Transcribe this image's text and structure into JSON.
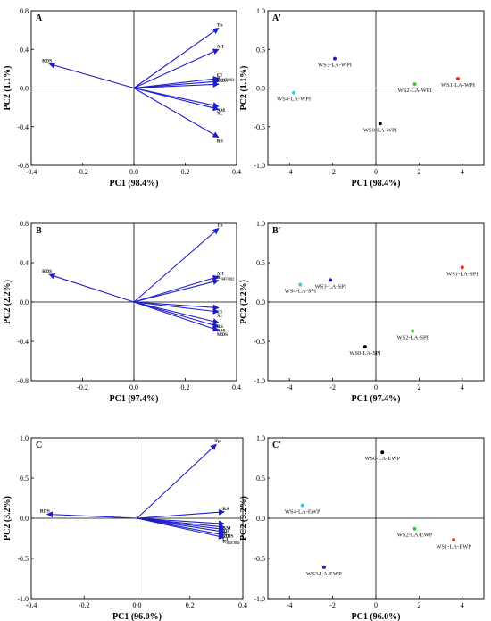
{
  "colors": {
    "loading_arrow": "#1c1ccc",
    "black": "#000000",
    "blue": "#1f1fb4",
    "cyan": "#33ccee",
    "green": "#33cc33",
    "red": "#ee2222"
  },
  "chart_data": [
    {
      "panel": "A",
      "type": "biplot-loadings",
      "xlabel": "PC1 (98.4%)",
      "ylabel": "PC2 (1.1%)",
      "xlim": [
        -0.4,
        0.4
      ],
      "ylim": [
        -0.8,
        0.8
      ],
      "xticks": [
        -0.4,
        -0.2,
        0.0,
        0.2,
        0.4
      ],
      "yticks": [
        -0.8,
        -0.4,
        0.0,
        0.4,
        0.8
      ],
      "xtick_labels": [
        "-0.4",
        "-0.2",
        "0.0",
        "0.2",
        "0.4"
      ],
      "ytick_labels": [
        "-0.8",
        "-0.4",
        "0.0",
        "0.4",
        "0.8"
      ],
      "loadings": [
        {
          "label": "Tp",
          "x": 0.33,
          "y": 0.62
        },
        {
          "label": "ΔH",
          "x": 0.33,
          "y": 0.4
        },
        {
          "label": "CI",
          "x": 0.33,
          "y": 0.1
        },
        {
          "label": "R1047/1022",
          "x": 0.33,
          "y": 0.07
        },
        {
          "label": "MDS",
          "x": 0.33,
          "y": 0.04
        },
        {
          "label": "AM",
          "x": 0.33,
          "y": -0.19
        },
        {
          "label": "Xc",
          "x": 0.33,
          "y": -0.22
        },
        {
          "label": "RS",
          "x": 0.33,
          "y": -0.51
        },
        {
          "label": "RDS",
          "x": -0.33,
          "y": 0.25
        }
      ]
    },
    {
      "panel": "A'",
      "type": "scatter",
      "xlabel": "PC1 (98.4%)",
      "ylabel": "PC2 (1.1%)",
      "xlim": [
        -5,
        5
      ],
      "ylim": [
        -1.0,
        1.0
      ],
      "xticks": [
        -4,
        -2,
        0,
        2,
        4
      ],
      "yticks": [
        -1.0,
        -0.5,
        0.0,
        0.5,
        1.0
      ],
      "xtick_labels": [
        "-4",
        "-2",
        "0",
        "2",
        "4"
      ],
      "ytick_labels": [
        "-1.0",
        "-0.5",
        "0.0",
        "0.5",
        "1.0"
      ],
      "points": [
        {
          "label": "WS3-LA-WPI",
          "x": -1.9,
          "y": 0.38,
          "color": "#1f1fb4"
        },
        {
          "label": "WS4-LA-WPI",
          "x": -3.8,
          "y": -0.06,
          "color": "#33ccee"
        },
        {
          "label": "WS2-LA-WPI",
          "x": 1.8,
          "y": 0.05,
          "color": "#33cc33"
        },
        {
          "label": "WS1-LA-WPI",
          "x": 3.8,
          "y": 0.12,
          "color": "#ee2222"
        },
        {
          "label": "WS0-LA-WPI",
          "x": 0.2,
          "y": -0.46,
          "color": "#000000"
        }
      ]
    },
    {
      "panel": "B",
      "type": "biplot-loadings",
      "xlabel": "PC1 (97.4%)",
      "ylabel": "PC2 (2.2%)",
      "xlim": [
        -0.4,
        0.4
      ],
      "ylim": [
        -0.8,
        0.8
      ],
      "xticks": [
        -0.2,
        0.0,
        0.2,
        0.4
      ],
      "yticks": [
        -0.8,
        -0.4,
        0.0,
        0.4,
        0.8
      ],
      "xtick_labels": [
        "-0.2",
        "0.0",
        "0.2",
        "0.4"
      ],
      "ytick_labels": [
        "-0.8",
        "-0.4",
        "0.0",
        "0.4",
        "0.8"
      ],
      "loadings": [
        {
          "label": "Tp",
          "x": 0.33,
          "y": 0.75
        },
        {
          "label": "ΔH",
          "x": 0.33,
          "y": 0.26
        },
        {
          "label": "R1047/1022",
          "x": 0.33,
          "y": 0.22
        },
        {
          "label": "CI",
          "x": 0.33,
          "y": -0.06
        },
        {
          "label": "Xc",
          "x": 0.33,
          "y": -0.1
        },
        {
          "label": "RS",
          "x": 0.33,
          "y": -0.21
        },
        {
          "label": "AM",
          "x": 0.33,
          "y": -0.25
        },
        {
          "label": "MDS",
          "x": 0.33,
          "y": -0.29
        },
        {
          "label": "RDS",
          "x": -0.33,
          "y": 0.28
        }
      ]
    },
    {
      "panel": "B'",
      "type": "scatter",
      "xlabel": "PC1 (97.4%)",
      "ylabel": "PC2 (2.2%)",
      "xlim": [
        -5,
        5
      ],
      "ylim": [
        -1.0,
        1.0
      ],
      "xticks": [
        -4,
        -2,
        0,
        2,
        4
      ],
      "yticks": [
        -1.0,
        -0.5,
        0.0,
        0.5,
        1.0
      ],
      "xtick_labels": [
        "-4",
        "-2",
        "0",
        "2",
        "4"
      ],
      "ytick_labels": [
        "-1.0",
        "-0.5",
        "0.0",
        "0.5",
        "1.0"
      ],
      "points": [
        {
          "label": "WS1-LA-SPI",
          "x": 4.0,
          "y": 0.44,
          "color": "#ee2222"
        },
        {
          "label": "WS3-LA-SPI",
          "x": -2.1,
          "y": 0.28,
          "color": "#1f1fb4"
        },
        {
          "label": "WS4-LA-SPI",
          "x": -3.5,
          "y": 0.22,
          "color": "#33ccee"
        },
        {
          "label": "WS2-LA-SPI",
          "x": 1.7,
          "y": -0.37,
          "color": "#33cc33"
        },
        {
          "label": "WS0-LA-SPI",
          "x": -0.5,
          "y": -0.57,
          "color": "#000000"
        }
      ]
    },
    {
      "panel": "C",
      "type": "biplot-loadings",
      "xlabel": "PC1 (96.0%)",
      "ylabel": "PC2 (3.2%)",
      "xlim": [
        -0.4,
        0.4
      ],
      "ylim": [
        -1.0,
        1.0
      ],
      "xticks": [
        -0.4,
        -0.2,
        0.0,
        0.2,
        0.4
      ],
      "yticks": [
        -1.0,
        -0.5,
        0.0,
        0.5,
        1.0
      ],
      "xtick_labels": [
        "-0.4",
        "-0.2",
        "0.0",
        "0.2",
        "0.4"
      ],
      "ytick_labels": [
        "-1.0",
        "-0.5",
        "0.0",
        "0.5",
        "1.0"
      ],
      "loadings": [
        {
          "label": "Tp",
          "x": 0.3,
          "y": 0.92
        },
        {
          "label": "RS",
          "x": 0.33,
          "y": 0.08
        },
        {
          "label": "AM",
          "x": 0.33,
          "y": -0.07
        },
        {
          "label": "ΔH",
          "x": 0.33,
          "y": -0.11
        },
        {
          "label": "Xc",
          "x": 0.33,
          "y": -0.14
        },
        {
          "label": "MDS",
          "x": 0.33,
          "y": -0.17
        },
        {
          "label": "CI",
          "x": 0.33,
          "y": -0.21
        },
        {
          "label": "R1047/1022",
          "x": 0.33,
          "y": -0.24
        },
        {
          "label": "RDS",
          "x": -0.34,
          "y": 0.05
        }
      ]
    },
    {
      "panel": "C'",
      "type": "scatter",
      "xlabel": "PC1 (96.0%)",
      "ylabel": "PC2 (3.2%)",
      "xlim": [
        -5,
        5
      ],
      "ylim": [
        -1.0,
        1.0
      ],
      "xticks": [
        -4,
        -2,
        0,
        2,
        4
      ],
      "yticks": [
        -1.0,
        -0.5,
        0.0,
        0.5,
        1.0
      ],
      "xtick_labels": [
        "-4",
        "-2",
        "0",
        "2",
        "4"
      ],
      "ytick_labels": [
        "-1.0",
        "-0.5",
        "0.0",
        "0.5",
        "1.0"
      ],
      "points": [
        {
          "label": "WS0-LA-EWP",
          "x": 0.3,
          "y": 0.82,
          "color": "#000000"
        },
        {
          "label": "WS4-LA-EWP",
          "x": -3.4,
          "y": 0.16,
          "color": "#33ccee"
        },
        {
          "label": "WS2-LA-EWP",
          "x": 1.8,
          "y": -0.13,
          "color": "#33cc33"
        },
        {
          "label": "WS1-LA-EWP",
          "x": 3.6,
          "y": -0.27,
          "color": "#ee2222"
        },
        {
          "label": "WS3-LA-EWP",
          "x": -2.4,
          "y": -0.61,
          "color": "#1f1fb4"
        }
      ]
    }
  ]
}
